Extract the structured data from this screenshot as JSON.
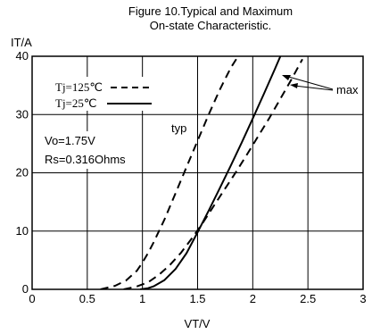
{
  "chart_data": {
    "type": "line",
    "title_lines": [
      "Figure 10.Typical and Maximum",
      "On-state Characteristic."
    ],
    "xlabel": "VT/V",
    "ylabel": "IT/A",
    "xlim": [
      0,
      3
    ],
    "ylim": [
      0,
      40
    ],
    "xticks": [
      0,
      0.5,
      1,
      1.5,
      2,
      2.5,
      3
    ],
    "xtick_labels": [
      "0",
      "0.5",
      "1",
      "1.5",
      "2",
      "2.5",
      "3"
    ],
    "yticks": [
      0,
      10,
      20,
      30,
      40
    ],
    "ytick_labels": [
      "0",
      "10",
      "20",
      "30",
      "40"
    ],
    "grid": true,
    "legend": {
      "placement": "top-left",
      "entries": [
        {
          "label": "Tj=125℃",
          "style": "dashed"
        },
        {
          "label": "Tj=25℃",
          "style": "solid"
        }
      ]
    },
    "annotations": {
      "params": [
        "Vo=1.75V",
        "Rs=0.316Ohms"
      ],
      "typ": "typ",
      "max": "max"
    },
    "series": [
      {
        "style": "dashed",
        "role": "typ",
        "x": [
          0.62,
          0.75,
          0.85,
          0.95,
          1.0,
          1.05,
          1.1,
          1.2,
          1.3,
          1.4,
          1.5,
          1.6,
          1.7,
          1.8,
          1.9,
          1.95
        ],
        "y": [
          0,
          0.6,
          1.5,
          3.2,
          4.6,
          6.2,
          8.0,
          12.0,
          16.5,
          21.0,
          25.5,
          30.0,
          34.2,
          38.0,
          41.0,
          42.5
        ]
      },
      {
        "style": "solid",
        "role": "max",
        "x": [
          0.98,
          1.05,
          1.1,
          1.2,
          1.3,
          1.4,
          1.5,
          1.6,
          1.7,
          1.8,
          1.9,
          2.0,
          2.1,
          2.2,
          2.25
        ],
        "y": [
          0,
          0.2,
          0.5,
          1.6,
          3.5,
          6.2,
          9.8,
          13.5,
          17.3,
          21.2,
          25.2,
          29.3,
          33.5,
          37.8,
          40.0
        ]
      },
      {
        "style": "dashed",
        "role": "max",
        "x": [
          0.83,
          0.95,
          1.05,
          1.15,
          1.25,
          1.35,
          1.45,
          1.55,
          1.65,
          1.75,
          1.85,
          1.95,
          2.05,
          2.15,
          2.25,
          2.35,
          2.45
        ],
        "y": [
          0,
          0.5,
          1.2,
          2.5,
          4.2,
          6.3,
          8.8,
          11.5,
          14.4,
          17.3,
          20.2,
          23.2,
          26.3,
          29.4,
          32.7,
          36.0,
          39.5
        ]
      }
    ]
  }
}
